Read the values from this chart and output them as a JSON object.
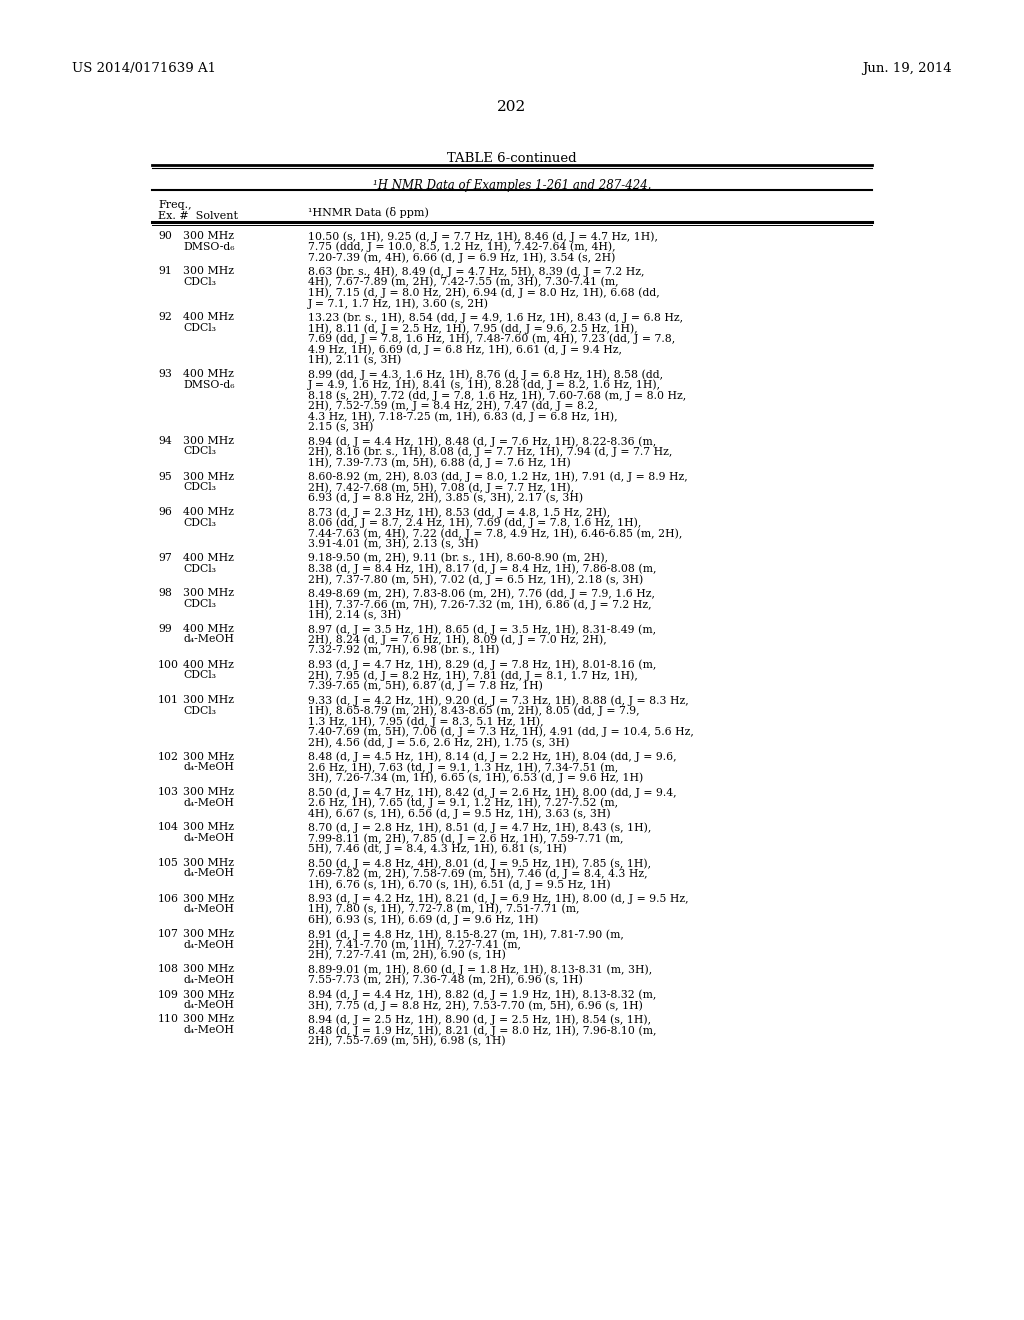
{
  "header_left": "US 2014/0171639 A1",
  "header_right": "Jun. 19, 2014",
  "page_number": "202",
  "table_title": "TABLE 6-continued",
  "table_subtitle": "¹H NMR Data of Examples 1-261 and 287-424.",
  "background_color": "#ffffff",
  "text_color": "#000000",
  "rows": [
    {
      "ex": "90",
      "freq": "300 MHz",
      "solvent": "DMSO-d₆",
      "data": "10.50 (s, 1H), 9.25 (d, J = 7.7 Hz, 1H), 8.46 (d, J = 4.7 Hz, 1H),|7.75 (ddd, J = 10.0, 8.5, 1.2 Hz, 1H), 7.42-7.64 (m, 4H),|7.20-7.39 (m, 4H), 6.66 (d, J = 6.9 Hz, 1H), 3.54 (s, 2H)"
    },
    {
      "ex": "91",
      "freq": "300 MHz",
      "solvent": "CDCl₃",
      "data": "8.63 (br. s., 4H), 8.49 (d, J = 4.7 Hz, 5H), 8.39 (d, J = 7.2 Hz,|4H), 7.67-7.89 (m, 2H), 7.42-7.55 (m, 3H), 7.30-7.41 (m,|1H), 7.15 (d, J = 8.0 Hz, 2H), 6.94 (d, J = 8.0 Hz, 1H), 6.68 (dd,|J = 7.1, 1.7 Hz, 1H), 3.60 (s, 2H)"
    },
    {
      "ex": "92",
      "freq": "400 MHz",
      "solvent": "CDCl₃",
      "data": "13.23 (br. s., 1H), 8.54 (dd, J = 4.9, 1.6 Hz, 1H), 8.43 (d, J = 6.8 Hz,|1H), 8.11 (d, J = 2.5 Hz, 1H), 7.95 (dd, J = 9.6, 2.5 Hz, 1H),|7.69 (dd, J = 7.8, 1.6 Hz, 1H), 7.48-7.60 (m, 4H), 7.23 (dd, J = 7.8,|4.9 Hz, 1H), 6.69 (d, J = 6.8 Hz, 1H), 6.61 (d, J = 9.4 Hz,|1H), 2.11 (s, 3H)"
    },
    {
      "ex": "93",
      "freq": "400 MHz",
      "solvent": "DMSO-d₆",
      "data": "8.99 (dd, J = 4.3, 1.6 Hz, 1H), 8.76 (d, J = 6.8 Hz, 1H), 8.58 (dd,|J = 4.9, 1.6 Hz, 1H), 8.41 (s, 1H), 8.28 (dd, J = 8.2, 1.6 Hz, 1H),|8.18 (s, 2H), 7.72 (dd, J = 7.8, 1.6 Hz, 1H), 7.60-7.68 (m, J = 8.0 Hz,|2H), 7.52-7.59 (m, J = 8.4 Hz, 2H), 7.47 (dd, J = 8.2,|4.3 Hz, 1H), 7.18-7.25 (m, 1H), 6.83 (d, J = 6.8 Hz, 1H),|2.15 (s, 3H)"
    },
    {
      "ex": "94",
      "freq": "300 MHz",
      "solvent": "CDCl₃",
      "data": "8.94 (d, J = 4.4 Hz, 1H), 8.48 (d, J = 7.6 Hz, 1H), 8.22-8.36 (m,|2H), 8.16 (br. s., 1H), 8.08 (d, J = 7.7 Hz, 1H), 7.94 (d, J = 7.7 Hz,|1H), 7.39-7.73 (m, 5H), 6.88 (d, J = 7.6 Hz, 1H)"
    },
    {
      "ex": "95",
      "freq": "300 MHz",
      "solvent": "CDCl₃",
      "data": "8.60-8.92 (m, 2H), 8.03 (dd, J = 8.0, 1.2 Hz, 1H), 7.91 (d, J = 8.9 Hz,|2H), 7.42-7.68 (m, 5H), 7.08 (d, J = 7.7 Hz, 1H),|6.93 (d, J = 8.8 Hz, 2H), 3.85 (s, 3H), 2.17 (s, 3H)"
    },
    {
      "ex": "96",
      "freq": "400 MHz",
      "solvent": "CDCl₃",
      "data": "8.73 (d, J = 2.3 Hz, 1H), 8.53 (dd, J = 4.8, 1.5 Hz, 2H),|8.06 (dd, J = 8.7, 2.4 Hz, 1H), 7.69 (dd, J = 7.8, 1.6 Hz, 1H),|7.44-7.63 (m, 4H), 7.22 (dd, J = 7.8, 4.9 Hz, 1H), 6.46-6.85 (m, 2H),|3.91-4.01 (m, 3H), 2.13 (s, 3H)"
    },
    {
      "ex": "97",
      "freq": "400 MHz",
      "solvent": "CDCl₃",
      "data": "9.18-9.50 (m, 2H), 9.11 (br. s., 1H), 8.60-8.90 (m, 2H),|8.38 (d, J = 8.4 Hz, 1H), 8.17 (d, J = 8.4 Hz, 1H), 7.86-8.08 (m,|2H), 7.37-7.80 (m, 5H), 7.02 (d, J = 6.5 Hz, 1H), 2.18 (s, 3H)"
    },
    {
      "ex": "98",
      "freq": "300 MHz",
      "solvent": "CDCl₃",
      "data": "8.49-8.69 (m, 2H), 7.83-8.06 (m, 2H), 7.76 (dd, J = 7.9, 1.6 Hz,|1H), 7.37-7.66 (m, 7H), 7.26-7.32 (m, 1H), 6.86 (d, J = 7.2 Hz,|1H), 2.14 (s, 3H)"
    },
    {
      "ex": "99",
      "freq": "400 MHz",
      "solvent": "d₄-MeOH",
      "data": "8.97 (d, J = 3.5 Hz, 1H), 8.65 (d, J = 3.5 Hz, 1H), 8.31-8.49 (m,|2H), 8.24 (d, J = 7.6 Hz, 1H), 8.09 (d, J = 7.0 Hz, 2H),|7.32-7.92 (m, 7H), 6.98 (br. s., 1H)"
    },
    {
      "ex": "100",
      "freq": "400 MHz",
      "solvent": "CDCl₃",
      "data": "8.93 (d, J = 4.7 Hz, 1H), 8.29 (d, J = 7.8 Hz, 1H), 8.01-8.16 (m,|2H), 7.95 (d, J = 8.2 Hz, 1H), 7.81 (dd, J = 8.1, 1.7 Hz, 1H),|7.39-7.65 (m, 5H), 6.87 (d, J = 7.8 Hz, 1H)"
    },
    {
      "ex": "101",
      "freq": "300 MHz",
      "solvent": "CDCl₃",
      "data": "9.33 (d, J = 4.2 Hz, 1H), 9.20 (d, J = 7.3 Hz, 1H), 8.88 (d, J = 8.3 Hz,|1H), 8.65-8.79 (m, 2H), 8.43-8.65 (m, 2H), 8.05 (dd, J = 7.9,|1.3 Hz, 1H), 7.95 (dd, J = 8.3, 5.1 Hz, 1H),|7.40-7.69 (m, 5H), 7.06 (d, J = 7.3 Hz, 1H), 4.91 (dd, J = 10.4, 5.6 Hz,|2H), 4.56 (dd, J = 5.6, 2.6 Hz, 2H), 1.75 (s, 3H)"
    },
    {
      "ex": "102",
      "freq": "300 MHz",
      "solvent": "d₄-MeOH",
      "data": "8.48 (d, J = 4.5 Hz, 1H), 8.14 (d, J = 2.2 Hz, 1H), 8.04 (dd, J = 9.6,|2.6 Hz, 1H), 7.63 (td, J = 9.1, 1.3 Hz, 1H), 7.34-7.51 (m,|3H), 7.26-7.34 (m, 1H), 6.65 (s, 1H), 6.53 (d, J = 9.6 Hz, 1H)"
    },
    {
      "ex": "103",
      "freq": "300 MHz",
      "solvent": "d₄-MeOH",
      "data": "8.50 (d, J = 4.7 Hz, 1H), 8.42 (d, J = 2.6 Hz, 1H), 8.00 (dd, J = 9.4,|2.6 Hz, 1H), 7.65 (td, J = 9.1, 1.2 Hz, 1H), 7.27-7.52 (m,|4H), 6.67 (s, 1H), 6.56 (d, J = 9.5 Hz, 1H), 3.63 (s, 3H)"
    },
    {
      "ex": "104",
      "freq": "300 MHz",
      "solvent": "d₄-MeOH",
      "data": "8.70 (d, J = 2.8 Hz, 1H), 8.51 (d, J = 4.7 Hz, 1H), 8.43 (s, 1H),|7.99-8.11 (m, 2H), 7.85 (d, J = 2.6 Hz, 1H), 7.59-7.71 (m,|5H), 7.46 (dt, J = 8.4, 4.3 Hz, 1H), 6.81 (s, 1H)"
    },
    {
      "ex": "105",
      "freq": "300 MHz",
      "solvent": "d₄-MeOH",
      "data": "8.50 (d, J = 4.8 Hz, 4H), 8.01 (d, J = 9.5 Hz, 1H), 7.85 (s, 1H),|7.69-7.82 (m, 2H), 7.58-7.69 (m, 5H), 7.46 (d, J = 8.4, 4.3 Hz,|1H), 6.76 (s, 1H), 6.70 (s, 1H), 6.51 (d, J = 9.5 Hz, 1H)"
    },
    {
      "ex": "106",
      "freq": "300 MHz",
      "solvent": "d₄-MeOH",
      "data": "8.93 (d, J = 4.2 Hz, 1H), 8.21 (d, J = 6.9 Hz, 1H), 8.00 (d, J = 9.5 Hz,|1H), 7.80 (s, 1H), 7.72-7.8 (m, 1H), 7.51-7.71 (m,|6H), 6.93 (s, 1H), 6.69 (d, J = 9.6 Hz, 1H)"
    },
    {
      "ex": "107",
      "freq": "300 MHz",
      "solvent": "d₄-MeOH",
      "data": "8.91 (d, J = 4.8 Hz, 1H), 8.15-8.27 (m, 1H), 7.81-7.90 (m,|2H), 7.41-7.70 (m, 11H), 7.27-7.41 (m,|2H), 7.27-7.41 (m, 2H), 6.90 (s, 1H)"
    },
    {
      "ex": "108",
      "freq": "300 MHz",
      "solvent": "d₄-MeOH",
      "data": "8.89-9.01 (m, 1H), 8.60 (d, J = 1.8 Hz, 1H), 8.13-8.31 (m, 3H),|7.55-7.73 (m, 2H), 7.36-7.48 (m, 2H), 6.96 (s, 1H)"
    },
    {
      "ex": "109",
      "freq": "300 MHz",
      "solvent": "d₄-MeOH",
      "data": "8.94 (d, J = 4.4 Hz, 1H), 8.82 (d, J = 1.9 Hz, 1H), 8.13-8.32 (m,|3H), 7.75 (d, J = 8.8 Hz, 2H), 7.53-7.70 (m, 5H), 6.96 (s, 1H)"
    },
    {
      "ex": "110",
      "freq": "300 MHz",
      "solvent": "d₄-MeOH",
      "data": "8.94 (d, J = 2.5 Hz, 1H), 8.90 (d, J = 2.5 Hz, 1H), 8.54 (s, 1H),|8.48 (d, J = 1.9 Hz, 1H), 8.21 (d, J = 8.0 Hz, 1H), 7.96-8.10 (m,|2H), 7.55-7.69 (m, 5H), 6.98 (s, 1H)"
    }
  ]
}
